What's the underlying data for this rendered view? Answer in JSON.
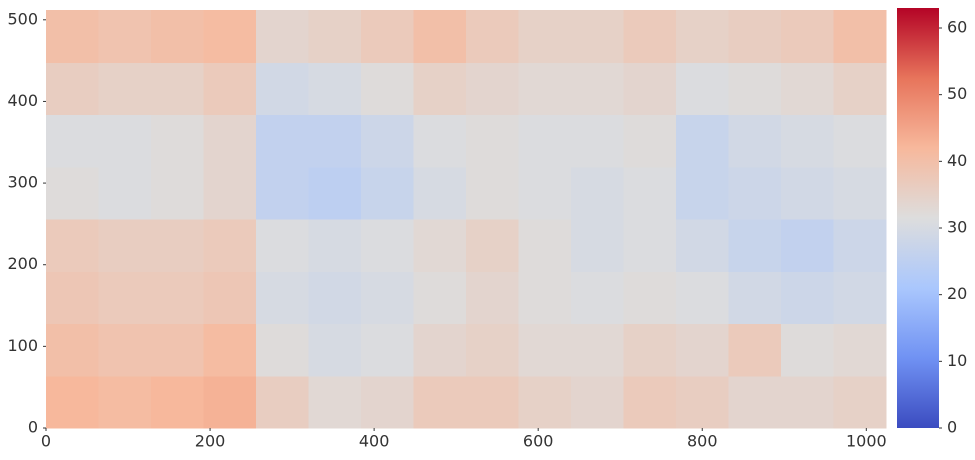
{
  "chart_data": {
    "type": "heatmap",
    "xlim": [
      0,
      1024
    ],
    "ylim": [
      0,
      512
    ],
    "xticks": [
      0,
      200,
      400,
      600,
      800,
      1000
    ],
    "yticks": [
      0,
      100,
      200,
      300,
      400,
      500
    ],
    "clim": [
      0,
      63
    ],
    "cticks": [
      0,
      10,
      20,
      30,
      40,
      50,
      60
    ],
    "colormap": [
      "#3b4cc0",
      "#7092f3",
      "#aac7fd",
      "#dddddd",
      "#f7b89c",
      "#e7745b",
      "#b40426"
    ],
    "values": [
      [
        42,
        41,
        42,
        43,
        36,
        33,
        34,
        37,
        37,
        35,
        34,
        37,
        36,
        34,
        34,
        35
      ],
      [
        40,
        39,
        39,
        41,
        32,
        30,
        31,
        34,
        35,
        33,
        33,
        35,
        34,
        37,
        32,
        33
      ],
      [
        38,
        37,
        37,
        38,
        30,
        29,
        30,
        32,
        34,
        32,
        31,
        32,
        31,
        29,
        28,
        29
      ],
      [
        37,
        36,
        36,
        37,
        31,
        30,
        31,
        33,
        35,
        32,
        30,
        31,
        29,
        27,
        26,
        28
      ],
      [
        32,
        31,
        32,
        34,
        26,
        25,
        27,
        30,
        32,
        31,
        30,
        31,
        27,
        28,
        29,
        30
      ],
      [
        31,
        31,
        32,
        34,
        26,
        26,
        28,
        31,
        32,
        31,
        31,
        32,
        27,
        29,
        30,
        31
      ],
      [
        36,
        35,
        35,
        37,
        29,
        30,
        32,
        35,
        34,
        33,
        33,
        34,
        31,
        32,
        33,
        35
      ],
      [
        40,
        39,
        40,
        41,
        34,
        35,
        37,
        40,
        37,
        35,
        35,
        37,
        35,
        36,
        37,
        40
      ]
    ]
  }
}
